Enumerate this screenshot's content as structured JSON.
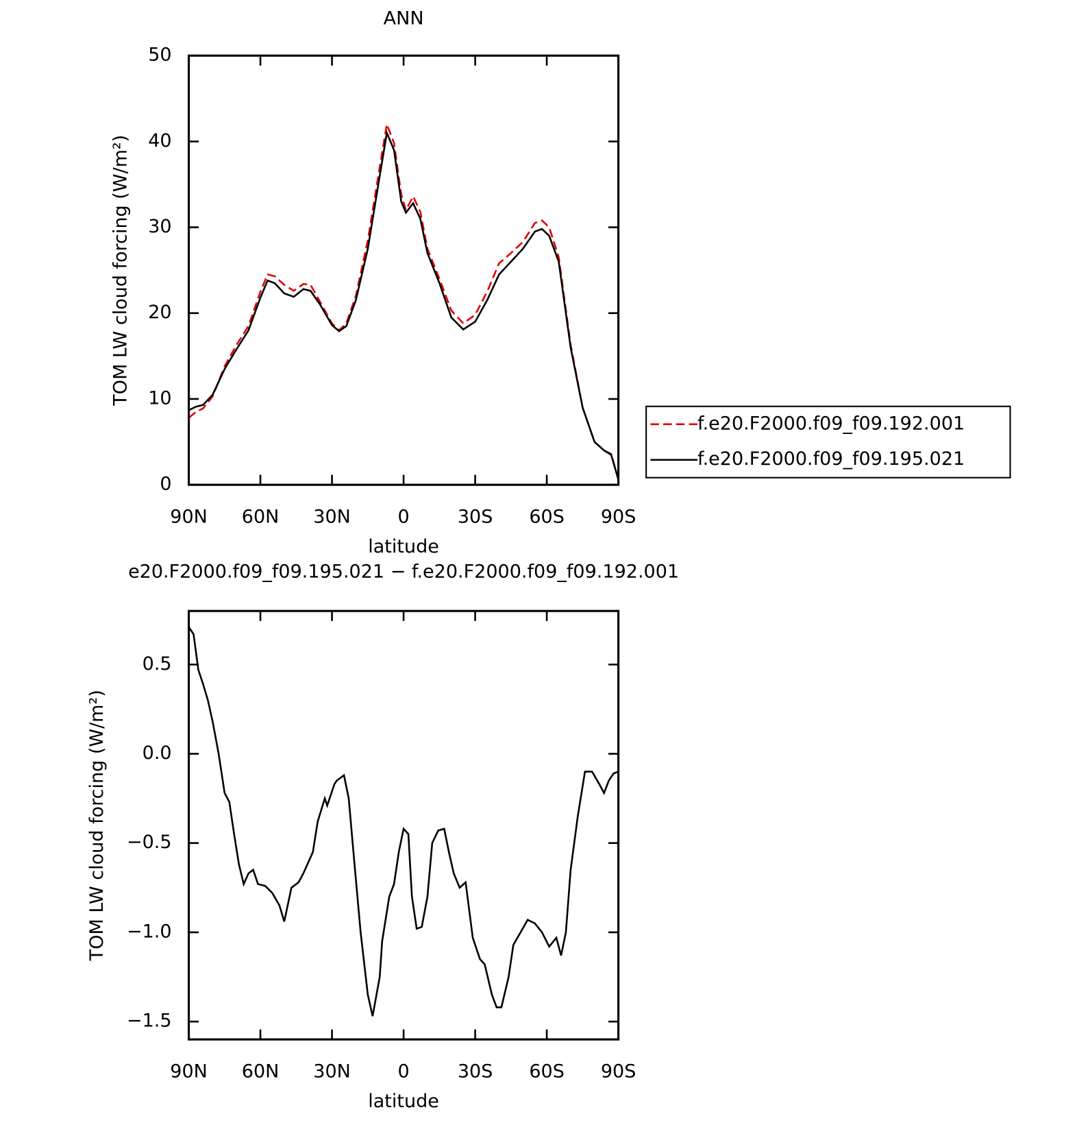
{
  "chart_data": [
    {
      "type": "line",
      "title": "ANN",
      "xlabel": "latitude",
      "ylabel": "TOM LW cloud forcing (W/m²)",
      "x": [
        90,
        87,
        84,
        80,
        75,
        70,
        65,
        60,
        57,
        54,
        50,
        46,
        42,
        39,
        35,
        30,
        27,
        24,
        20,
        15,
        10,
        7,
        4,
        1,
        -1,
        -4,
        -7,
        -10,
        -15,
        -20,
        -25,
        -30,
        -35,
        -40,
        -45,
        -50,
        -55,
        -58,
        -61,
        -65,
        -70,
        -75,
        -80,
        -84,
        -87,
        -90
      ],
      "series": [
        {
          "name": "f.e20.F2000.f09_f09.192.001",
          "color": "#e00000",
          "dash": true,
          "values": [
            7.8,
            8.5,
            8.9,
            10.3,
            13.8,
            16.3,
            18.5,
            22.5,
            24.5,
            24.3,
            23.3,
            22.6,
            23.4,
            23.3,
            21.3,
            18.8,
            18,
            18.8,
            22,
            28.5,
            37,
            42,
            39.8,
            33.8,
            32,
            33.6,
            31.8,
            27.5,
            24,
            20.3,
            18.8,
            19.8,
            22.5,
            25.8,
            27,
            28.3,
            30.5,
            30.8,
            30,
            26.5,
            16.3,
            9,
            5,
            4,
            3.6,
            0.6
          ]
        },
        {
          "name": "f.e20.F2000.f09_f09.195.021",
          "color": "#000000",
          "dash": false,
          "values": [
            8.7,
            9.1,
            9.3,
            10.5,
            13.5,
            15.8,
            18,
            21.8,
            23.8,
            23.5,
            22.3,
            21.9,
            22.8,
            22.6,
            21,
            18.6,
            17.9,
            18.5,
            21.5,
            27.5,
            36,
            41,
            39,
            33,
            31.7,
            32.8,
            31,
            27,
            23.5,
            19.5,
            18.1,
            19,
            21.5,
            24.5,
            26,
            27.5,
            29.5,
            29.8,
            29,
            26,
            16,
            9,
            5,
            4,
            3.5,
            0.6
          ]
        }
      ],
      "xlim": [
        90,
        -90
      ],
      "xticks": [
        {
          "value": 90,
          "label": "90N"
        },
        {
          "value": 60,
          "label": "60N"
        },
        {
          "value": 30,
          "label": "30N"
        },
        0,
        {
          "value": -30,
          "label": "30S"
        },
        {
          "value": -60,
          "label": "60S"
        },
        {
          "value": -90,
          "label": "90S"
        }
      ],
      "ylim": [
        0,
        50
      ],
      "yticks": [
        0,
        10,
        20,
        30,
        40,
        50
      ],
      "legend": "right"
    },
    {
      "type": "line",
      "title": "e20.F2000.f09_f09.195.021 − f.e20.F2000.f09_f09.192.001",
      "xlabel": "latitude",
      "ylabel": "TOM LW cloud forcing (W/m²)",
      "x": [
        90,
        88,
        86,
        84,
        82,
        80,
        77.5,
        75,
        73,
        71,
        69,
        67,
        65,
        63,
        61,
        58,
        55,
        52,
        50,
        47,
        44,
        42,
        39,
        38,
        36,
        33,
        32,
        29,
        28,
        25,
        23,
        21,
        18,
        15,
        13,
        10,
        9,
        6,
        4,
        2,
        0,
        -2,
        -3.5,
        -5.5,
        -7.6,
        -10,
        -12,
        -14.5,
        -17,
        -19,
        -21,
        -23.5,
        -26,
        -29,
        -32,
        -34,
        -37,
        -39,
        -41,
        -44,
        -46,
        -49,
        -52,
        -55,
        -58,
        -61,
        -64,
        -66,
        -68,
        -70,
        -73,
        -76,
        -79,
        -82,
        -84,
        -86,
        -88,
        -90
      ],
      "series": [
        {
          "name": null,
          "color": "#000000",
          "dash": false,
          "values": [
            0.71,
            0.67,
            0.47,
            0.39,
            0.3,
            0.18,
            0.0,
            -0.22,
            -0.27,
            -0.45,
            -0.62,
            -0.73,
            -0.67,
            -0.65,
            -0.73,
            -0.74,
            -0.78,
            -0.85,
            -0.94,
            -0.75,
            -0.72,
            -0.67,
            -0.58,
            -0.55,
            -0.38,
            -0.25,
            -0.29,
            -0.17,
            -0.15,
            -0.12,
            -0.25,
            -0.55,
            -1.0,
            -1.35,
            -1.47,
            -1.25,
            -1.05,
            -0.8,
            -0.73,
            -0.55,
            -0.42,
            -0.45,
            -0.8,
            -0.98,
            -0.97,
            -0.8,
            -0.5,
            -0.43,
            -0.42,
            -0.55,
            -0.67,
            -0.75,
            -0.72,
            -1.03,
            -1.15,
            -1.18,
            -1.35,
            -1.42,
            -1.42,
            -1.25,
            -1.07,
            -1.0,
            -0.93,
            -0.95,
            -1.0,
            -1.08,
            -1.03,
            -1.13,
            -1.0,
            -0.65,
            -0.35,
            -0.1,
            -0.1,
            -0.17,
            -0.22,
            -0.15,
            -0.11,
            -0.1
          ]
        }
      ],
      "xlim": [
        90,
        -90
      ],
      "xticks": [
        {
          "value": 90,
          "label": "90N"
        },
        {
          "value": 60,
          "label": "60N"
        },
        {
          "value": 30,
          "label": "30N"
        },
        0,
        {
          "value": -30,
          "label": "30S"
        },
        {
          "value": -60,
          "label": "60S"
        },
        {
          "value": -90,
          "label": "90S"
        }
      ],
      "ylim": [
        -1.6,
        0.8
      ],
      "yticks": [
        {
          "value": -1.5,
          "label": "−1.5"
        },
        {
          "value": -1,
          "label": "−1.0"
        },
        {
          "value": -0.5,
          "label": "−0.5"
        },
        {
          "value": 0,
          "label": "0.0"
        },
        0.5
      ]
    }
  ]
}
